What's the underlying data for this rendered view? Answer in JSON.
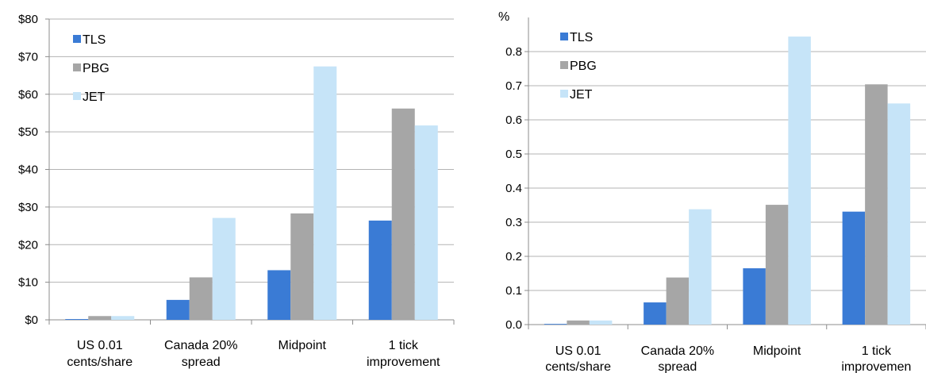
{
  "colors": {
    "TLS": "#3a7bd5",
    "PBG": "#a6a6a6",
    "JET": "#c6e4f8",
    "grid": "#b3b3b3",
    "axis": "#8c8c8c"
  },
  "chart_data": [
    {
      "type": "bar",
      "categories": [
        [
          "US 0.01",
          "cents/share"
        ],
        [
          "Canada 20%",
          "spread"
        ],
        [
          "Midpoint"
        ],
        [
          "1 tick",
          "improvement"
        ]
      ],
      "series": [
        {
          "name": "TLS",
          "values": [
            0.2,
            5.3,
            13.2,
            26.4
          ]
        },
        {
          "name": "PBG",
          "values": [
            1.0,
            11.3,
            28.3,
            56.2
          ]
        },
        {
          "name": "JET",
          "values": [
            1.0,
            27.1,
            67.4,
            51.7
          ]
        }
      ],
      "ylim": [
        0,
        80
      ],
      "ytick_step": 10,
      "ytick_labels": [
        "$0",
        "$10",
        "$20",
        "$30",
        "$40",
        "$50",
        "$60",
        "$70",
        "$80"
      ],
      "grid": true,
      "legend": "top-left"
    },
    {
      "type": "bar",
      "unit_label": "%",
      "categories": [
        [
          "US 0.01",
          "cents/share"
        ],
        [
          "Canada 20%",
          "spread"
        ],
        [
          "Midpoint"
        ],
        [
          "1 tick",
          "improvemen"
        ]
      ],
      "series": [
        {
          "name": "TLS",
          "values": [
            0.002,
            0.065,
            0.165,
            0.331
          ]
        },
        {
          "name": "PBG",
          "values": [
            0.012,
            0.138,
            0.351,
            0.704
          ]
        },
        {
          "name": "JET",
          "values": [
            0.012,
            0.338,
            0.844,
            0.648
          ]
        }
      ],
      "ylim": [
        0,
        0.9
      ],
      "ytick_step": 0.1,
      "ytick_labels": [
        "0.0",
        "0.1",
        "0.2",
        "0.3",
        "0.4",
        "0.5",
        "0.6",
        "0.7",
        "0.8"
      ],
      "grid": true,
      "legend": "top-left"
    }
  ]
}
